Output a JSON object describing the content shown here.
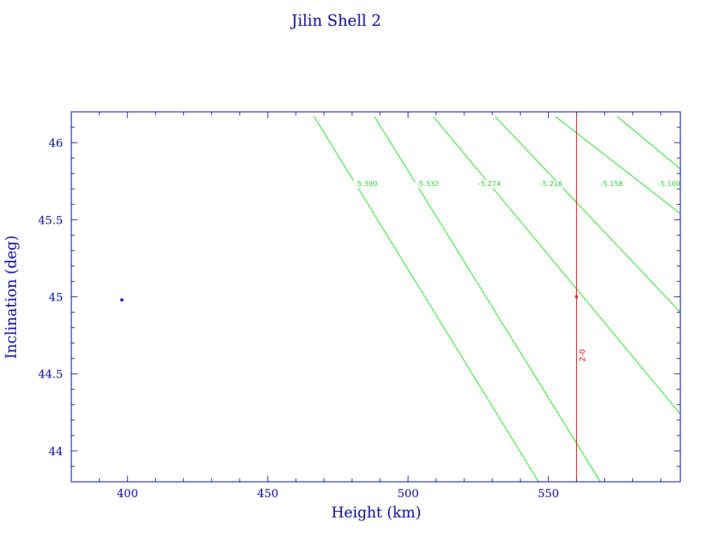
{
  "colors": {
    "axis": "#000099",
    "contour": "#22dd22",
    "reference": "#cc0000",
    "point": "#0000cc"
  },
  "chart_data": {
    "type": "line",
    "title": "Jilin Shell 2",
    "xlabel": "Height (km)",
    "ylabel": "Inclination (deg)",
    "xlim": [
      380,
      597
    ],
    "ylim": [
      43.8,
      46.2
    ],
    "x_ticks": [
      400,
      450,
      500,
      550
    ],
    "y_ticks": [
      44,
      44.5,
      45,
      45.5,
      46
    ],
    "x_tick_labels": [
      "400",
      "450",
      "500",
      "550"
    ],
    "y_tick_labels": [
      "44",
      "44.5",
      "45",
      "45.5",
      "46"
    ],
    "grid": false,
    "contours": [
      {
        "label": "-5.390",
        "points": [
          [
            466.5,
            46.17
          ],
          [
            546.5,
            43.8
          ]
        ],
        "label_at": [
          481.0,
          45.72
        ]
      },
      {
        "label": "-5.332",
        "points": [
          [
            488.0,
            46.17
          ],
          [
            568.5,
            43.8
          ]
        ],
        "label_at": [
          503.0,
          45.72
        ]
      },
      {
        "label": "-5.274",
        "points": [
          [
            509.0,
            46.17
          ],
          [
            597.0,
            44.24
          ]
        ],
        "label_at": [
          525.0,
          45.72
        ]
      },
      {
        "label": "-5.216",
        "points": [
          [
            531.0,
            46.17
          ],
          [
            597.0,
            44.9
          ]
        ],
        "label_at": [
          547.0,
          45.72
        ]
      },
      {
        "label": "-5.158",
        "points": [
          [
            552.5,
            46.17
          ],
          [
            597.0,
            45.54
          ]
        ],
        "label_at": [
          568.5,
          45.72
        ]
      },
      {
        "label": "-5.100",
        "points": [
          [
            574.5,
            46.17
          ],
          [
            597.0,
            45.83
          ]
        ],
        "label_at": [
          589.0,
          45.72
        ]
      }
    ],
    "reference_line": {
      "x": 560,
      "label": "2-0",
      "label_at_y": 44.62
    },
    "points": [
      {
        "x": 398,
        "y": 44.98,
        "series": "blue"
      },
      {
        "x": 560,
        "y": 45.0,
        "series": "red"
      }
    ]
  }
}
